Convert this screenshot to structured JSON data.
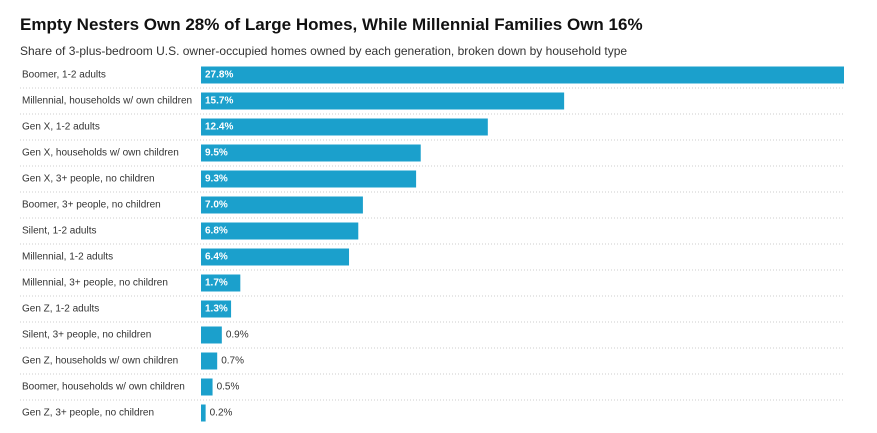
{
  "chart_data": {
    "type": "bar",
    "orientation": "horizontal",
    "title": "Empty Nesters Own 28% of Large Homes, While Millennial Families Own 16%",
    "subtitle": "Share of 3-plus-bedroom U.S. owner-occupied homes owned by each generation, broken down by household type",
    "categories": [
      "Boomer, 1-2 adults",
      "Millennial, households w/ own children",
      "Gen X, 1-2 adults",
      "Gen X, households w/ own children",
      "Gen X, 3+ people, no children",
      "Boomer, 3+ people, no children",
      "Silent, 1-2 adults",
      "Millennial, 1-2 adults",
      "Millennial, 3+ people, no children",
      "Gen Z, 1-2 adults",
      "Silent, 3+ people, no children",
      "Gen Z, households w/ own children",
      "Boomer, households w/ own children",
      "Gen Z, 3+ people, no children"
    ],
    "values": [
      27.8,
      15.7,
      12.4,
      9.5,
      9.3,
      7.0,
      6.8,
      6.4,
      1.7,
      1.3,
      0.9,
      0.7,
      0.5,
      0.2
    ],
    "value_labels": [
      "27.8%",
      "15.7%",
      "12.4%",
      "9.5%",
      "9.3%",
      "7.0%",
      "6.8%",
      "6.4%",
      "1.7%",
      "1.3%",
      "0.9%",
      "0.7%",
      "0.5%",
      "0.2%"
    ],
    "color": "#1ba0cc"
  }
}
